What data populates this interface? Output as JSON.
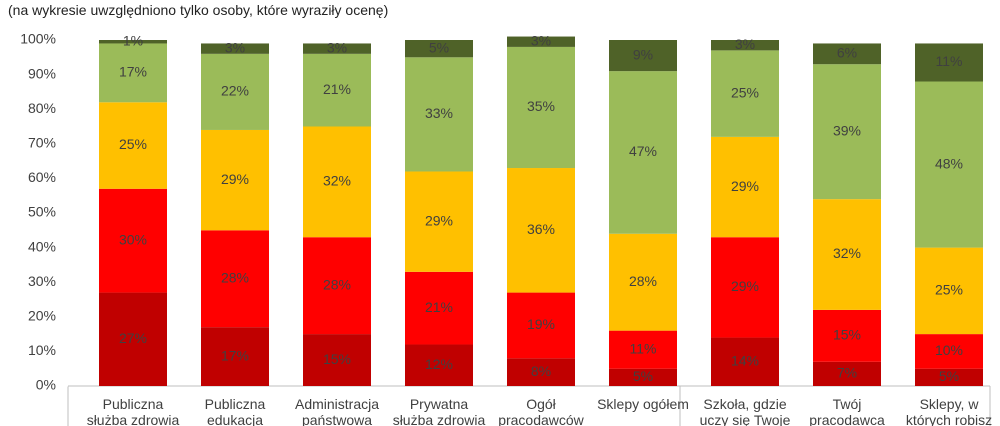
{
  "chart_data": {
    "type": "stacked_bar",
    "subtitle": "(na wykresie uwzględniono tylko osoby, które wyraziły ocenę)",
    "categories": [
      "Publiczna\nsłużba zdrowia",
      "Publiczna\nedukacja",
      "Administracja\npaństwowa",
      "Prywatna\nsłużba zdrowia",
      "Ogół\npracodawców",
      "Sklepy ogółem",
      "Szkoła, gdzie\nuczy się Twoje",
      "Twój\npracodawca",
      "Sklepy, w\nktórych robisz"
    ],
    "series": [
      {
        "color": "#c00000",
        "values": [
          27,
          17,
          15,
          12,
          8,
          5,
          14,
          7,
          5
        ],
        "value_labels": [
          "27%",
          "17%",
          "15%",
          "12%",
          "8%",
          "5%",
          "14%",
          "7%",
          "5%"
        ]
      },
      {
        "color": "#ff0000",
        "values": [
          30,
          28,
          28,
          21,
          19,
          11,
          29,
          15,
          10
        ],
        "value_labels": [
          "30%",
          "28%",
          "28%",
          "21%",
          "19%",
          "11%",
          "29%",
          "15%",
          "10%"
        ]
      },
      {
        "color": "#ffc000",
        "values": [
          25,
          29,
          32,
          29,
          36,
          28,
          29,
          32,
          25
        ],
        "value_labels": [
          "25%",
          "29%",
          "32%",
          "29%",
          "36%",
          "28%",
          "29%",
          "32%",
          "25%"
        ]
      },
      {
        "color": "#9bbb59",
        "values": [
          17,
          22,
          21,
          33,
          35,
          47,
          25,
          39,
          48
        ],
        "value_labels": [
          "17%",
          "22%",
          "21%",
          "33%",
          "35%",
          "47%",
          "25%",
          "39%",
          "48%"
        ]
      },
      {
        "color": "#4f6228",
        "values": [
          1,
          3,
          3,
          5,
          3,
          9,
          3,
          6,
          11
        ],
        "value_labels": [
          "1%",
          "3%",
          "3%",
          "5%",
          "3%",
          "9%",
          "3%",
          "6%",
          "11%"
        ]
      }
    ],
    "ylim": [
      0,
      100
    ],
    "yticks": [
      {
        "value": 0,
        "label": "0%"
      },
      {
        "value": 10,
        "label": "10%"
      },
      {
        "value": 20,
        "label": "20%"
      },
      {
        "value": 30,
        "label": "30%"
      },
      {
        "value": 40,
        "label": "40%"
      },
      {
        "value": 50,
        "label": "50%"
      },
      {
        "value": 60,
        "label": "60%"
      },
      {
        "value": 70,
        "label": "70%"
      },
      {
        "value": 80,
        "label": "80%"
      },
      {
        "value": 90,
        "label": "90%"
      },
      {
        "value": 100,
        "label": "100%"
      }
    ]
  }
}
